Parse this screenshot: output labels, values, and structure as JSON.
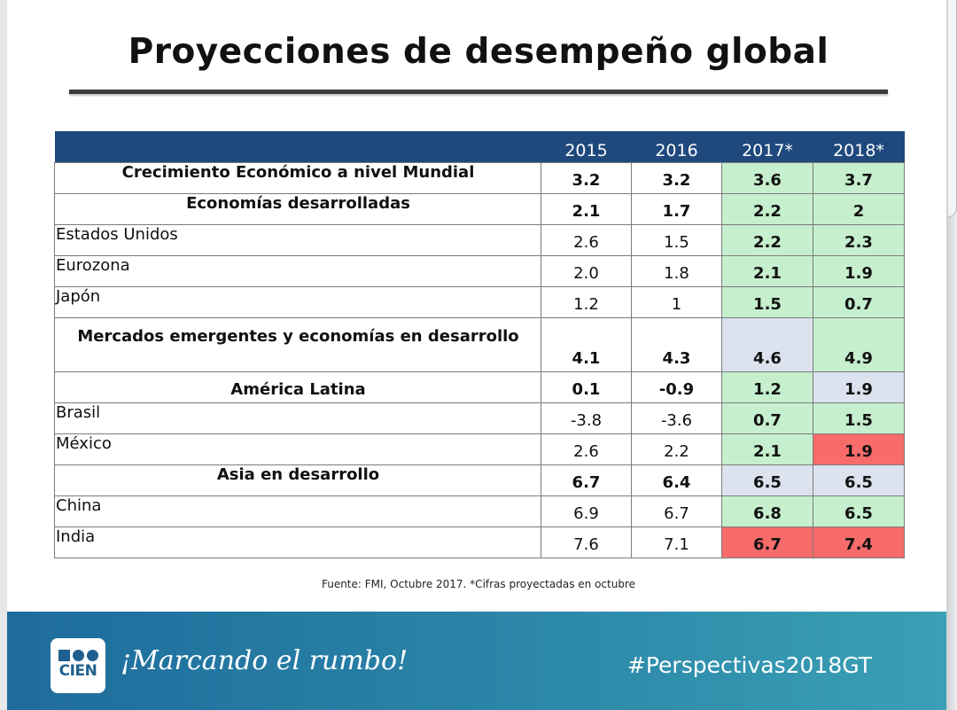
{
  "title": "Proyecciones de desempeño global",
  "table": {
    "headers": [
      "",
      "2015",
      "2016",
      "2017*",
      "2018*"
    ],
    "rows": [
      {
        "label": "Crecimiento Económico a nivel  Mundial",
        "values": [
          "3.2",
          "3.2",
          "3.6",
          "3.7"
        ]
      },
      {
        "label": "Economías desarrolladas",
        "values": [
          "2.1",
          "1.7",
          "2.2",
          "2"
        ]
      },
      {
        "label": "Estados Unidos",
        "values": [
          "2.6",
          "1.5",
          "2.2",
          "2.3"
        ]
      },
      {
        "label": "Eurozona",
        "values": [
          "2.0",
          "1.8",
          "2.1",
          "1.9"
        ]
      },
      {
        "label": "Japón",
        "values": [
          "1.2",
          "1",
          "1.5",
          "0.7"
        ]
      },
      {
        "label": "Mercados emergentes y economías en desarrollo",
        "values": [
          "4.1",
          "4.3",
          "4.6",
          "4.9"
        ]
      },
      {
        "label": "América Latina",
        "values": [
          "0.1",
          "-0.9",
          "1.2",
          "1.9"
        ]
      },
      {
        "label": "Brasil",
        "values": [
          "-3.8",
          "-3.6",
          "0.7",
          "1.5"
        ]
      },
      {
        "label": "México",
        "values": [
          "2.6",
          "2.2",
          "2.1",
          "1.9"
        ]
      },
      {
        "label": "Asia en desarrollo",
        "values": [
          "6.7",
          "6.4",
          "6.5",
          "6.5"
        ]
      },
      {
        "label": "China",
        "values": [
          "6.9",
          "6.7",
          "6.8",
          "6.5"
        ]
      },
      {
        "label": "India",
        "values": [
          "7.6",
          "7.1",
          "6.7",
          "7.4"
        ]
      }
    ]
  },
  "source": "Fuente: FMI,  Octubre 2017. *Cifras proyectadas en octubre",
  "footer": {
    "logo_text": "CIEN",
    "slogan": "¡Marcando el rumbo!",
    "hashtag": "#Perspectivas2018GT"
  },
  "colors": {
    "header_bg": "#1f497d",
    "green": "#c6efce",
    "blue": "#dce3ef",
    "red": "#f86b6b",
    "footer": "#2b86a8"
  }
}
